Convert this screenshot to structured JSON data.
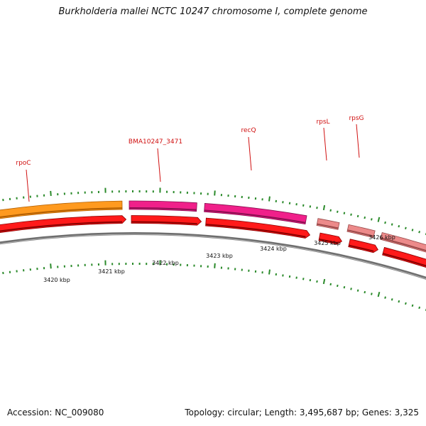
{
  "title": "Burkholderia mallei NCTC 10247 chromosome I, complete genome",
  "footer": {
    "accession": "Accession: NC_009080",
    "summary": "Topology: circular; Length: 3,495,687 bp; Genes: 3,325"
  },
  "colors": {
    "backbone": "#8a8a8a",
    "cds_top": "#ff9a1f",
    "cds_bottom": "#ff1a1a",
    "cds_magenta": "#f0208a",
    "cds_pink": "#ec8a8a",
    "tick": "#2a8a2a",
    "label": "#d01010"
  },
  "scale": {
    "unit": "kbp",
    "labels": [
      "3420 kbp",
      "3421 kbp",
      "3422 kbp",
      "3423 kbp",
      "3424 kbp",
      "3425 kbp",
      "3426 kbp"
    ]
  },
  "genes": [
    {
      "name": "rpoC",
      "color": "cds_top"
    },
    {
      "name": "BMA10247_3471",
      "color": "cds_magenta"
    },
    {
      "name": "recQ",
      "color": "cds_magenta"
    },
    {
      "name": "rpsL",
      "color": "cds_pink"
    },
    {
      "name": "rpsG",
      "color": "cds_pink"
    }
  ]
}
